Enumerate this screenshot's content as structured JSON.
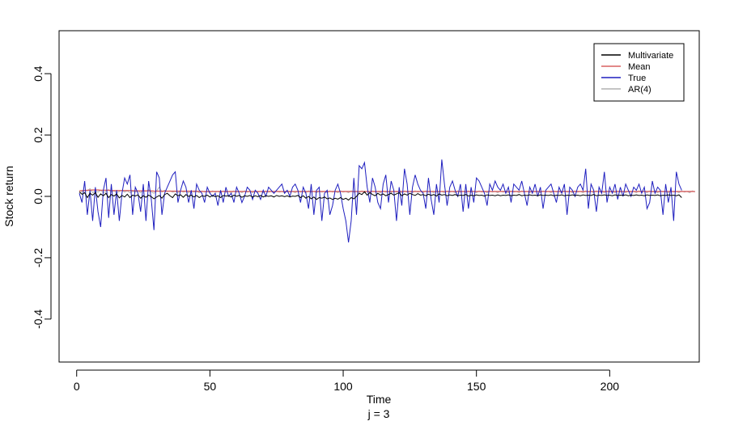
{
  "chart_data": {
    "type": "line",
    "xlabel": "Time",
    "subtitle": "j = 3",
    "ylabel": "Stock return",
    "xlim": [
      -6.6,
      233.6
    ],
    "ylim": [
      -0.54,
      0.54
    ],
    "xticks": [
      0,
      50,
      100,
      150,
      200
    ],
    "yticks": [
      -0.4,
      -0.2,
      0.0,
      0.2,
      0.4
    ],
    "ytick_labels": [
      "-0.4",
      "-0.2",
      "0.0",
      "0.2",
      "0.4"
    ],
    "grid": false,
    "legend_position": "top-right",
    "series": [
      {
        "name": "Multivariate",
        "color": "#000000",
        "values": [
          0.015,
          0.007,
          0.012,
          -0.004,
          0.01,
          0.004,
          0.012,
          -0.003,
          0.008,
          0.002,
          0.01,
          -0.004,
          0.006,
          0.001,
          0.008,
          -0.005,
          0.003,
          -0.002,
          0.007,
          -0.004,
          0.004,
          0.001,
          0.005,
          -0.006,
          0.002,
          -0.003,
          0.004,
          -0.001,
          -0.008,
          -0.002,
          0.003,
          -0.006,
          0.006,
          0.01,
          0.002,
          -0.004,
          0.008,
          0.002,
          0.005,
          -0.003,
          0.006,
          0.0,
          0.004,
          -0.002,
          0.003,
          -0.004,
          0.002,
          0.0,
          0.004,
          -0.002,
          0.003,
          -0.001,
          0.002,
          -0.004,
          0.003,
          0.001,
          0.002,
          -0.002,
          0.004,
          0.0,
          0.003,
          -0.003,
          0.002,
          0.0,
          0.003,
          -0.002,
          0.002,
          -0.001,
          0.003,
          -0.002,
          0.002,
          0.0,
          0.002,
          -0.002,
          0.003,
          0.0,
          0.002,
          -0.001,
          0.002,
          -0.002,
          0.001,
          0.0,
          0.003,
          -0.004,
          0.002,
          -0.006,
          0.0,
          -0.008,
          -0.002,
          -0.01,
          -0.004,
          -0.006,
          -0.002,
          -0.008,
          -0.005,
          -0.01,
          -0.006,
          -0.009,
          -0.004,
          -0.01,
          -0.006,
          -0.012,
          -0.004,
          -0.008,
          0.0,
          0.01,
          0.006,
          0.015,
          0.004,
          0.012,
          0.006,
          0.002,
          0.01,
          0.004,
          0.008,
          0.002,
          0.006,
          0.01,
          0.004,
          0.008,
          0.012,
          0.002,
          0.008,
          0.004,
          0.01,
          0.006,
          0.003,
          0.009,
          0.004,
          0.006,
          0.002,
          0.007,
          0.003,
          0.006,
          0.001,
          0.008,
          0.004,
          0.006,
          0.002,
          0.005,
          0.003,
          0.006,
          0.002,
          0.004,
          0.003,
          0.006,
          0.001,
          0.004,
          0.002,
          0.005,
          0.003,
          0.004,
          0.001,
          0.005,
          0.003,
          0.004,
          0.002,
          0.005,
          0.002,
          0.004,
          0.003,
          0.005,
          0.002,
          0.004,
          0.003,
          0.006,
          0.002,
          0.004,
          0.003,
          0.005,
          0.003,
          0.004,
          0.002,
          0.005,
          0.003,
          0.004,
          0.003,
          0.005,
          0.002,
          0.004,
          0.003,
          0.005,
          0.002,
          0.004,
          0.003,
          0.005,
          0.003,
          0.004,
          0.002,
          0.005,
          0.003,
          0.004,
          0.003,
          0.006,
          0.002,
          0.004,
          0.003,
          0.005,
          0.003,
          0.004,
          0.002,
          0.005,
          0.003,
          0.004,
          0.003,
          0.005,
          0.002,
          0.004,
          0.003,
          0.005,
          0.003,
          0.004,
          0.002,
          0.005,
          0.003,
          0.004,
          0.003,
          0.005,
          0.002,
          0.004,
          0.003,
          0.005,
          0.003,
          0.004,
          0.002,
          0.005,
          -0.004
        ]
      },
      {
        "name": "Mean",
        "color": "#d96060",
        "values": [
          0.018,
          0.019,
          0.019,
          0.02,
          0.02,
          0.021,
          0.021,
          0.021,
          0.02,
          0.02,
          0.02,
          0.02,
          0.019,
          0.019,
          0.019,
          0.019,
          0.019,
          0.019,
          0.019,
          0.019,
          0.019,
          0.018,
          0.018,
          0.018,
          0.018,
          0.018,
          0.018,
          0.018,
          0.017,
          0.017,
          0.017,
          0.017,
          0.017,
          0.017,
          0.017,
          0.017,
          0.017,
          0.017,
          0.017,
          0.017,
          0.017,
          0.017,
          0.017,
          0.017,
          0.017,
          0.016,
          0.016,
          0.016,
          0.016,
          0.016,
          0.016,
          0.016,
          0.016,
          0.016,
          0.016,
          0.016,
          0.016,
          0.016,
          0.016,
          0.016,
          0.016,
          0.016,
          0.016,
          0.016,
          0.016,
          0.016,
          0.016,
          0.016,
          0.016,
          0.016,
          0.016,
          0.016,
          0.016,
          0.016,
          0.016,
          0.016,
          0.016,
          0.016,
          0.016,
          0.016,
          0.016,
          0.016,
          0.016,
          0.016,
          0.016,
          0.016,
          0.016,
          0.016,
          0.016,
          0.016,
          0.016,
          0.016,
          0.016,
          0.016,
          0.016,
          0.016,
          0.016,
          0.016,
          0.016,
          0.016,
          0.016,
          0.016,
          0.016,
          0.016,
          0.016,
          0.016,
          0.016,
          0.016,
          0.016,
          0.016,
          0.016,
          0.016,
          0.016,
          0.016,
          0.016,
          0.016,
          0.016,
          0.016,
          0.016,
          0.016,
          0.016,
          0.016,
          0.016,
          0.016,
          0.016,
          0.016,
          0.016,
          0.016,
          0.016,
          0.016,
          0.016,
          0.016,
          0.016,
          0.016,
          0.016,
          0.016,
          0.016,
          0.016,
          0.016,
          0.016,
          0.016,
          0.016,
          0.016,
          0.016,
          0.016,
          0.016,
          0.016,
          0.016,
          0.016,
          0.016,
          0.016,
          0.016,
          0.016,
          0.016,
          0.016,
          0.016,
          0.016,
          0.016,
          0.016,
          0.016,
          0.016,
          0.016,
          0.016,
          0.016,
          0.016,
          0.016,
          0.016,
          0.016,
          0.016,
          0.016,
          0.016,
          0.016,
          0.016,
          0.016,
          0.016,
          0.016,
          0.016,
          0.016,
          0.016,
          0.016,
          0.016,
          0.016,
          0.016,
          0.016,
          0.016,
          0.016,
          0.016,
          0.016,
          0.016,
          0.016,
          0.016,
          0.016,
          0.016,
          0.016,
          0.016,
          0.016,
          0.016,
          0.016,
          0.016,
          0.016,
          0.016,
          0.016,
          0.016,
          0.016,
          0.016,
          0.016,
          0.016,
          0.016,
          0.016,
          0.016,
          0.016,
          0.016,
          0.016,
          0.016,
          0.016,
          0.016,
          0.016,
          0.016,
          0.016,
          0.016,
          0.016,
          0.016,
          0.016,
          0.016,
          0.016,
          0.016,
          0.016,
          0.016,
          0.016,
          0.016,
          0.016,
          0.016
        ]
      },
      {
        "name": "True",
        "color": "#1f1fbf",
        "values": [
          0.01,
          -0.02,
          0.05,
          -0.06,
          0.02,
          -0.08,
          0.03,
          -0.05,
          -0.1,
          0.02,
          0.06,
          -0.07,
          0.04,
          -0.06,
          0.02,
          -0.08,
          0.01,
          0.06,
          0.04,
          0.07,
          -0.06,
          0.03,
          0.01,
          -0.05,
          0.04,
          -0.08,
          0.05,
          -0.01,
          -0.11,
          0.08,
          0.06,
          -0.06,
          0.01,
          0.03,
          0.05,
          0.07,
          0.08,
          -0.02,
          0.02,
          0.05,
          0.03,
          -0.02,
          0.02,
          -0.04,
          0.04,
          0.02,
          0.01,
          -0.02,
          0.03,
          0.01,
          0.0,
          0.01,
          -0.03,
          0.02,
          -0.02,
          0.03,
          0.0,
          0.01,
          -0.02,
          0.03,
          0.01,
          -0.02,
          0.0,
          0.03,
          0.02,
          -0.01,
          0.02,
          0.01,
          -0.01,
          0.02,
          0.0,
          0.03,
          0.02,
          0.01,
          0.02,
          0.03,
          0.04,
          0.01,
          0.02,
          0.0,
          0.03,
          0.04,
          0.02,
          -0.02,
          0.03,
          0.01,
          -0.04,
          0.04,
          -0.06,
          0.02,
          0.03,
          -0.08,
          0.01,
          0.02,
          -0.06,
          -0.03,
          0.02,
          0.04,
          0.01,
          -0.04,
          -0.08,
          -0.15,
          -0.08,
          0.06,
          -0.06,
          0.1,
          0.09,
          0.11,
          0.03,
          -0.02,
          0.06,
          0.03,
          -0.02,
          -0.04,
          0.04,
          0.07,
          -0.02,
          0.05,
          0.02,
          -0.08,
          0.03,
          -0.03,
          0.09,
          0.04,
          -0.06,
          0.03,
          0.07,
          0.04,
          0.02,
          0.01,
          -0.04,
          0.06,
          -0.01,
          -0.06,
          0.04,
          -0.02,
          0.12,
          0.04,
          -0.03,
          0.03,
          0.05,
          0.02,
          0.0,
          0.04,
          -0.05,
          0.04,
          -0.04,
          0.03,
          -0.02,
          0.06,
          0.05,
          0.03,
          0.01,
          -0.03,
          0.04,
          0.02,
          0.05,
          0.03,
          0.02,
          0.04,
          0.01,
          0.03,
          -0.02,
          0.04,
          0.03,
          0.02,
          0.05,
          0.01,
          -0.03,
          0.03,
          0.01,
          0.04,
          0.0,
          0.03,
          -0.04,
          0.02,
          0.03,
          0.04,
          0.01,
          -0.02,
          0.03,
          0.01,
          0.04,
          -0.06,
          0.03,
          0.02,
          0.0,
          0.03,
          0.04,
          0.02,
          0.09,
          -0.04,
          0.04,
          0.02,
          -0.05,
          0.03,
          0.01,
          0.08,
          -0.02,
          0.03,
          0.01,
          0.04,
          -0.01,
          0.03,
          0.0,
          0.04,
          0.02,
          0.0,
          0.03,
          0.02,
          0.04,
          0.01,
          0.03,
          -0.04,
          -0.02,
          0.05,
          0.01,
          0.03,
          0.02,
          -0.06,
          0.04,
          -0.02,
          0.03,
          -0.08,
          0.08,
          0.04,
          0.02
        ]
      },
      {
        "name": "AR(4)",
        "color": "#b0b0b0",
        "values": [
          0.01,
          0.015,
          0.02,
          0.018,
          0.025,
          0.012,
          0.018,
          0.014,
          0.02,
          0.012,
          0.016,
          0.022,
          0.014,
          0.018,
          0.012,
          0.016,
          0.02,
          0.014,
          0.018,
          0.012,
          0.016,
          0.014,
          0.018,
          0.012,
          0.02,
          0.016,
          0.022,
          0.014,
          0.01,
          0.018,
          0.03,
          0.014,
          0.02,
          0.016,
          0.018,
          0.014,
          0.016,
          0.012,
          0.018,
          0.014,
          0.016,
          0.012,
          0.018,
          0.014,
          0.016,
          0.012,
          0.018,
          0.014,
          0.016,
          0.012,
          0.018,
          0.014,
          0.016,
          0.012,
          0.018,
          0.014,
          0.016,
          0.012,
          0.018,
          0.014,
          0.016,
          0.012,
          0.018,
          0.014,
          0.016,
          0.012,
          0.018,
          0.014,
          0.016,
          0.012,
          0.018,
          0.014,
          0.016,
          0.012,
          0.018,
          0.014,
          0.016,
          0.012,
          0.018,
          0.014,
          0.016,
          0.012,
          0.018,
          0.014,
          0.016,
          0.012,
          0.018,
          0.014,
          0.016,
          0.012,
          0.018,
          0.014,
          0.016,
          0.012,
          0.018,
          0.014,
          0.016,
          0.012,
          0.018,
          0.014,
          0.016,
          0.012,
          0.018,
          0.014,
          0.016,
          0.012,
          0.018,
          0.014,
          0.016,
          0.012,
          0.018,
          0.014,
          0.016,
          0.012,
          0.018,
          0.014,
          0.016,
          0.012,
          0.018,
          0.014,
          0.016,
          0.012,
          0.018,
          0.014,
          0.016,
          0.012,
          0.018,
          0.014,
          0.016,
          0.012,
          0.018,
          0.014,
          0.016,
          0.012,
          0.018,
          0.014,
          0.016,
          0.012,
          0.018,
          0.014,
          0.016,
          0.012,
          0.018,
          0.014,
          0.016,
          0.012,
          0.018,
          0.014,
          0.016,
          0.012,
          0.018,
          0.014,
          0.016,
          0.012,
          0.018,
          0.014,
          0.016,
          0.012,
          0.018,
          0.014,
          0.016,
          0.012,
          0.018,
          0.014,
          0.016,
          0.012,
          0.018,
          0.014,
          0.016,
          0.012,
          0.018,
          0.014,
          0.016,
          0.012,
          0.018,
          0.014,
          0.016,
          0.012,
          0.018,
          0.014,
          0.016,
          0.012,
          0.018,
          0.014,
          0.016,
          0.012,
          0.018,
          0.014,
          0.016,
          0.012,
          0.018,
          0.014,
          0.016,
          0.012,
          0.018,
          0.014,
          0.016,
          0.012,
          0.018,
          0.014,
          0.016,
          0.012,
          0.018,
          0.014,
          0.016,
          0.012,
          0.018,
          0.014,
          0.016,
          0.012,
          0.018,
          0.014,
          0.016,
          0.012,
          0.018,
          0.014,
          0.016,
          0.012,
          0.018,
          0.014,
          0.016,
          0.012,
          0.018,
          0.014,
          0.016,
          0.012,
          0.018,
          0.014,
          0.016,
          0.012,
          0.018,
          0.014
        ]
      }
    ]
  }
}
